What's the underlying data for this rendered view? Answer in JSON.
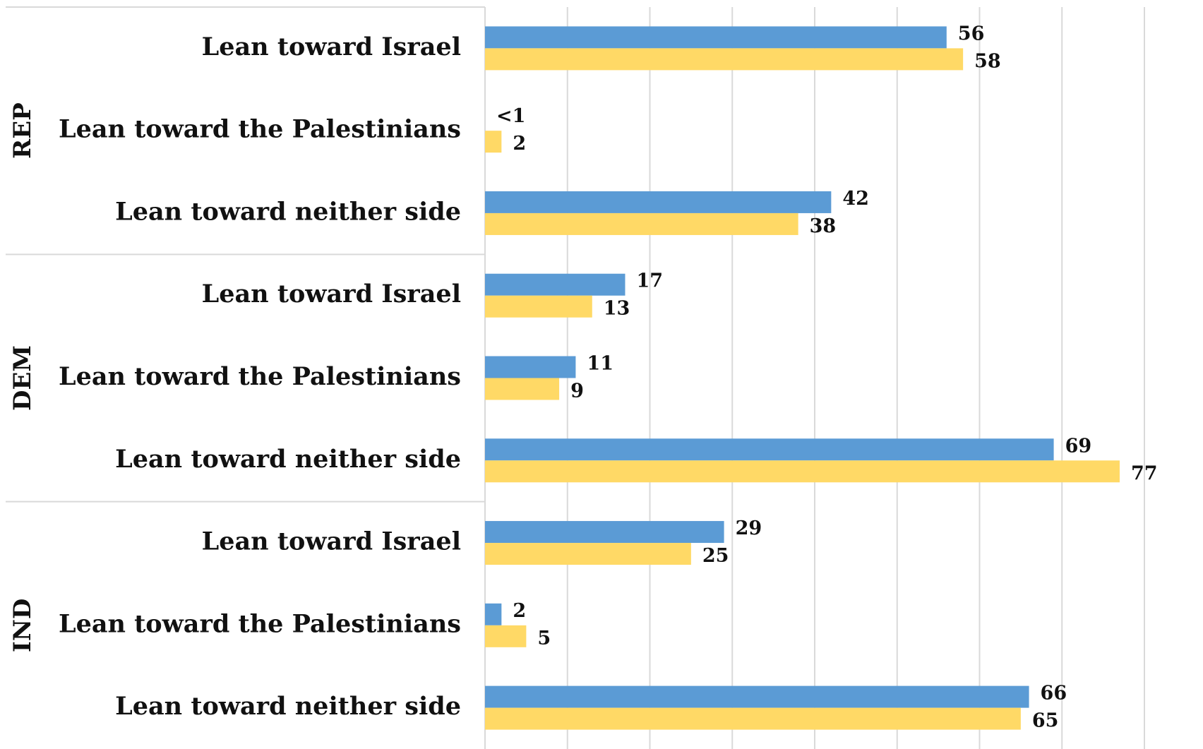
{
  "chart_data": {
    "type": "hbar",
    "groups": [
      "REP",
      "DEM",
      "IND"
    ],
    "categories": [
      "Lean toward Israel",
      "Lean toward the Palestinians",
      "Lean toward neither side",
      "Lean toward Israel",
      "Lean toward the Palestinians",
      "Lean toward neither side",
      "Lean toward Israel",
      "Lean toward the Palestinians",
      "Lean toward neither side"
    ],
    "series": [
      {
        "color": "#5b9bd5",
        "values": [
          56,
          0,
          42,
          17,
          11,
          69,
          29,
          2,
          66
        ],
        "value_labels": [
          "56",
          "<1",
          "42",
          "17",
          "11",
          "69",
          "29",
          "2",
          "66"
        ]
      },
      {
        "color": "#ffd966",
        "values": [
          58,
          2,
          38,
          13,
          9,
          77,
          25,
          5,
          65
        ]
      }
    ],
    "xlim": [
      0,
      80
    ],
    "xticks": [
      0,
      10,
      20,
      30,
      40,
      50,
      60,
      70,
      80
    ],
    "grid": true
  }
}
